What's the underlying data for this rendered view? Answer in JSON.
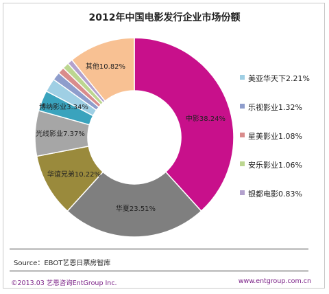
{
  "chart_data": {
    "type": "pie",
    "title": "2012年中国电影发行企业市场份额",
    "categories": [
      "中影",
      "华夏",
      "华谊兄弟",
      "光线影业",
      "博纳影业",
      "美亚华天下",
      "乐视影业",
      "星美影业",
      "安乐影业",
      "银都电影",
      "其他"
    ],
    "values": [
      38.24,
      23.51,
      10.22,
      7.37,
      3.34,
      2.21,
      1.32,
      1.08,
      1.06,
      0.83,
      10.82
    ],
    "labels": [
      "中影38.24%",
      "华夏23.51%",
      "华谊兄弟10.22%",
      "光线影业7.37%",
      "博纳影业3.34%",
      "",
      "",
      "",
      "",
      "",
      "其他10.82%"
    ],
    "colors": [
      "#c8108b",
      "#7f7f7f",
      "#9a8a3c",
      "#a6a6a6",
      "#3aa3bd",
      "#9fcfe4",
      "#8e9dcc",
      "#d98c8c",
      "#bcd690",
      "#b3a1cd",
      "#f8c193"
    ],
    "legend": {
      "placement": "right",
      "entries": [
        {
          "label": "美亚华天下2.21%",
          "color": "#9fcfe4"
        },
        {
          "label": "乐视影业1.32%",
          "color": "#8e9dcc"
        },
        {
          "label": "星美影业1.08%",
          "color": "#d98c8c"
        },
        {
          "label": "安乐影业1.06%",
          "color": "#bcd690"
        },
        {
          "label": "银都电影0.83%",
          "color": "#b3a1cd"
        }
      ]
    }
  },
  "source": "Source：EBOT艺恩日票房智库",
  "footer_left": "©2013.03  艺恩咨询EntGroup Inc.",
  "footer_right": "www.entgroup.com.cn"
}
